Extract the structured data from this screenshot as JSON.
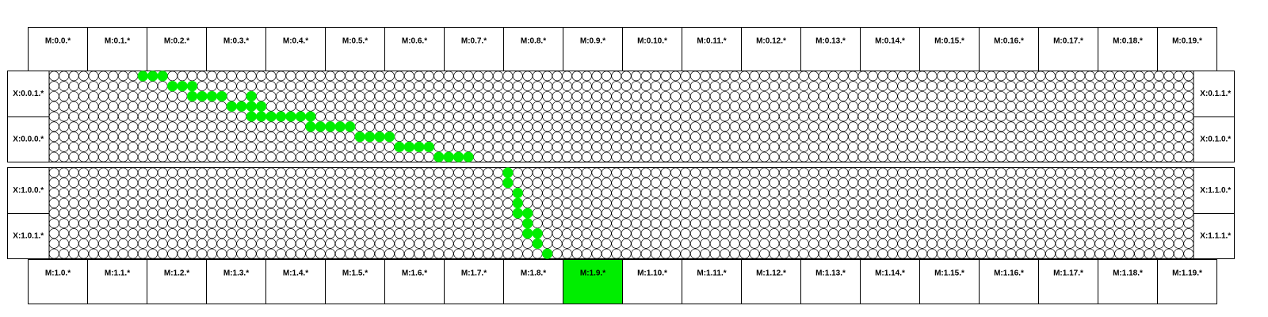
{
  "colors": {
    "highlight": "#00ee00",
    "grid_line": "#000000",
    "background": "#ffffff"
  },
  "top_modules": [
    "M:0.0.*",
    "M:0.1.*",
    "M:0.2.*",
    "M:0.3.*",
    "M:0.4.*",
    "M:0.5.*",
    "M:0.6.*",
    "M:0.7.*",
    "M:0.8.*",
    "M:0.9.*",
    "M:0.10.*",
    "M:0.11.*",
    "M:0.12.*",
    "M:0.13.*",
    "M:0.14.*",
    "M:0.15.*",
    "M:0.16.*",
    "M:0.17.*",
    "M:0.18.*",
    "M:0.19.*"
  ],
  "bottom_modules": [
    "M:1.0.*",
    "M:1.1.*",
    "M:1.2.*",
    "M:1.3.*",
    "M:1.4.*",
    "M:1.5.*",
    "M:1.6.*",
    "M:1.7.*",
    "M:1.8.*",
    "M:1.9.*",
    "M:1.10.*",
    "M:1.11.*",
    "M:1.12.*",
    "M:1.13.*",
    "M:1.14.*",
    "M:1.15.*",
    "M:1.16.*",
    "M:1.17.*",
    "M:1.18.*",
    "M:1.19.*"
  ],
  "highlighted_bottom_module": 9,
  "grid": {
    "columns": 116,
    "rows_per_band": 9
  },
  "bands": [
    {
      "left_labels": [
        "X:0.0.1.*",
        "X:0.0.0.*"
      ],
      "right_labels": [
        "X:0.1.1.*",
        "X:0.1.0.*"
      ],
      "highlighted_cells": [
        [
          0,
          9
        ],
        [
          0,
          10
        ],
        [
          0,
          11
        ],
        [
          1,
          12
        ],
        [
          1,
          13
        ],
        [
          1,
          14
        ],
        [
          2,
          14
        ],
        [
          2,
          15
        ],
        [
          2,
          16
        ],
        [
          2,
          17
        ],
        [
          2,
          20
        ],
        [
          3,
          18
        ],
        [
          3,
          19
        ],
        [
          3,
          20
        ],
        [
          3,
          21
        ],
        [
          4,
          20
        ],
        [
          4,
          21
        ],
        [
          4,
          22
        ],
        [
          4,
          23
        ],
        [
          4,
          24
        ],
        [
          4,
          25
        ],
        [
          4,
          26
        ],
        [
          5,
          26
        ],
        [
          5,
          27
        ],
        [
          5,
          28
        ],
        [
          5,
          29
        ],
        [
          5,
          30
        ],
        [
          6,
          31
        ],
        [
          6,
          32
        ],
        [
          6,
          33
        ],
        [
          6,
          34
        ],
        [
          7,
          35
        ],
        [
          7,
          36
        ],
        [
          7,
          37
        ],
        [
          7,
          38
        ],
        [
          8,
          39
        ],
        [
          8,
          40
        ],
        [
          8,
          41
        ],
        [
          8,
          42
        ]
      ]
    },
    {
      "left_labels": [
        "X:1.0.0.*",
        "X:1.0.1.*"
      ],
      "right_labels": [
        "X:1.1.0.*",
        "X:1.1.1.*"
      ],
      "highlighted_cells": [
        [
          0,
          46
        ],
        [
          1,
          46
        ],
        [
          2,
          47
        ],
        [
          3,
          47
        ],
        [
          4,
          47
        ],
        [
          4,
          48
        ],
        [
          5,
          48
        ],
        [
          6,
          48
        ],
        [
          6,
          49
        ],
        [
          7,
          49
        ],
        [
          8,
          50
        ]
      ]
    }
  ]
}
